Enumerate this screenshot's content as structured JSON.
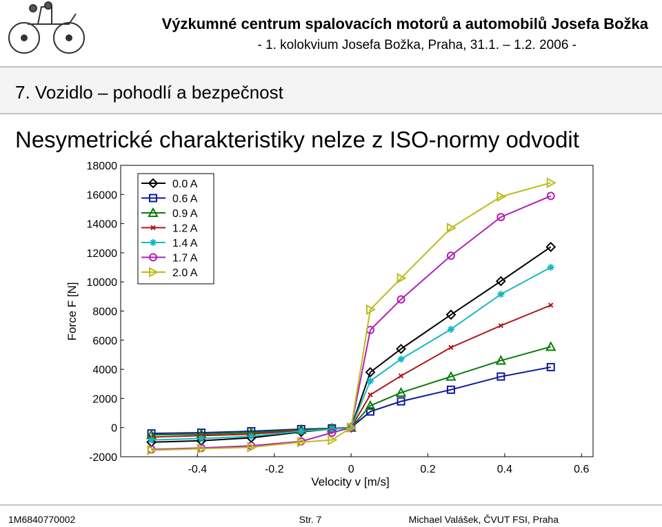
{
  "header": {
    "title": "Výzkumné centrum spalovacích motorů a automobilů Josefa Božka",
    "subtitle": "- 1. kolokvium Josefa Božka, Praha, 31.1. – 1.2. 2006 -"
  },
  "section": "7. Vozidlo – pohodlí a bezpečnost",
  "heading": "Nesymetrické charakteristiky nelze z ISO-normy odvodit",
  "footer": {
    "left": "1M6840770002",
    "center": "Str. 7",
    "right": "Michael Valášek, ČVUT FSI, Praha"
  },
  "chart_data": {
    "type": "line",
    "x_label": "Velocity v [m/s]",
    "y_label": "Force F [N]",
    "x": [
      -0.52,
      -0.39,
      -0.26,
      -0.13,
      -0.05,
      0,
      0.05,
      0.13,
      0.26,
      0.39,
      0.52
    ],
    "xlim": [
      -0.6,
      0.63
    ],
    "xticks": [
      -0.4,
      -0.2,
      0,
      0.2,
      0.4,
      0.6
    ],
    "ylim": [
      -2000,
      18000
    ],
    "yticks": [
      -2000,
      0,
      2000,
      4000,
      6000,
      8000,
      10000,
      12000,
      14000,
      16000,
      18000
    ],
    "grid": false,
    "legend": "upper left",
    "series": [
      {
        "name": "0.0 A",
        "color": "#000000",
        "marker": "diamond",
        "values": [
          -1000,
          -900,
          -700,
          -300,
          -100,
          0,
          3800,
          5400,
          7750,
          10050,
          12400
        ]
      },
      {
        "name": "0.6 A",
        "color": "#0a1a96",
        "marker": "square",
        "values": [
          -400,
          -350,
          -250,
          -100,
          -50,
          0,
          1100,
          1800,
          2600,
          3500,
          4150
        ]
      },
      {
        "name": "0.9 A",
        "color": "#0a7a0a",
        "marker": "triangle-up",
        "values": [
          -500,
          -450,
          -350,
          -150,
          -50,
          0,
          1500,
          2400,
          3500,
          4600,
          5550
        ]
      },
      {
        "name": "1.2 A",
        "color": "#b01818",
        "marker": "x",
        "values": [
          -650,
          -550,
          -450,
          -200,
          -100,
          0,
          2250,
          3550,
          5500,
          7000,
          8400
        ]
      },
      {
        "name": "1.4 A",
        "color": "#14b8c0",
        "marker": "star",
        "values": [
          -850,
          -750,
          -600,
          -250,
          -100,
          0,
          3200,
          4700,
          6750,
          9150,
          11000
        ]
      },
      {
        "name": "1.7 A",
        "color": "#b020b4",
        "marker": "circle",
        "values": [
          -1500,
          -1400,
          -1250,
          -950,
          -350,
          0,
          6700,
          8800,
          11800,
          14450,
          15900
        ]
      },
      {
        "name": "2.0 A",
        "color": "#bcbc1c",
        "marker": "triangle-right",
        "values": [
          -1550,
          -1450,
          -1350,
          -1000,
          -850,
          0,
          8100,
          10250,
          13700,
          15850,
          16800
        ]
      }
    ]
  }
}
